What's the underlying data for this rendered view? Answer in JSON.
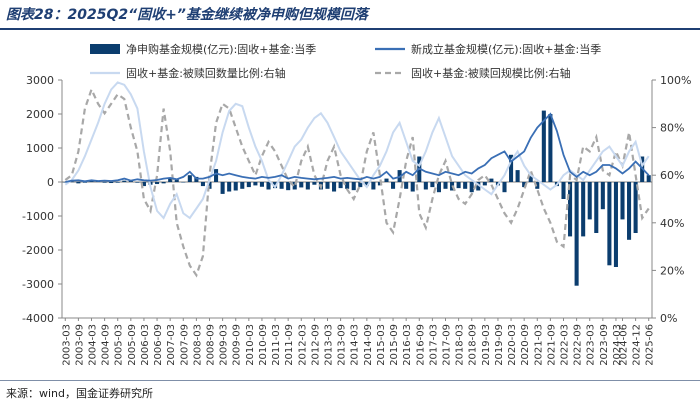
{
  "title": "图表28：2025Q2“固收+”基金继续被净申购但规模回落",
  "source": "来源：wind，国金证券研究所",
  "colors": {
    "bar": "#0b3d6e",
    "line_new": "#3a6fb5",
    "line_ratio": "#c8d9f0",
    "line_scale_ratio": "#a8a8a8",
    "axis": "#888888",
    "text": "#333333",
    "title": "#1f3f73"
  },
  "chart_data": {
    "type": "bar+line",
    "x": [
      "2003-03",
      "2003-06",
      "2003-09",
      "2003-12",
      "2004-03",
      "2004-06",
      "2004-09",
      "2004-12",
      "2005-03",
      "2005-06",
      "2005-09",
      "2005-12",
      "2006-03",
      "2006-06",
      "2006-09",
      "2006-12",
      "2007-03",
      "2007-06",
      "2007-09",
      "2007-12",
      "2008-03",
      "2008-06",
      "2008-09",
      "2008-12",
      "2009-03",
      "2009-06",
      "2009-09",
      "2009-12",
      "2010-03",
      "2010-06",
      "2010-09",
      "2010-12",
      "2011-03",
      "2011-06",
      "2011-09",
      "2011-12",
      "2012-03",
      "2012-06",
      "2012-09",
      "2012-12",
      "2013-03",
      "2013-06",
      "2013-09",
      "2013-12",
      "2014-03",
      "2014-06",
      "2014-09",
      "2014-12",
      "2015-03",
      "2015-06",
      "2015-09",
      "2015-12",
      "2016-03",
      "2016-06",
      "2016-09",
      "2016-12",
      "2017-03",
      "2017-06",
      "2017-09",
      "2017-12",
      "2018-03",
      "2018-06",
      "2018-09",
      "2018-12",
      "2019-03",
      "2019-06",
      "2019-09",
      "2019-12",
      "2020-03",
      "2020-06",
      "2020-09",
      "2020-12",
      "2021-03",
      "2021-06",
      "2021-09",
      "2021-12",
      "2022-03",
      "2022-06",
      "2022-09",
      "2022-12",
      "2023-03",
      "2023-06",
      "2023-09",
      "2023-12",
      "2024-03",
      "2024-06",
      "2024-09",
      "2024-12",
      "2025-03",
      "2025-06"
    ],
    "x_tick_labels": [
      "2003-03",
      "2003-09",
      "2004-03",
      "2004-09",
      "2005-03",
      "2005-09",
      "2006-03",
      "2006-09",
      "2007-03",
      "2007-09",
      "2008-03",
      "2008-09",
      "2009-03",
      "2009-09",
      "2010-03",
      "2010-09",
      "2011-03",
      "2011-09",
      "2012-03",
      "2012-09",
      "2013-03",
      "2013-09",
      "2014-03",
      "2014-09",
      "2015-03",
      "2015-09",
      "2016-03",
      "2016-09",
      "2017-03",
      "2017-09",
      "2018-03",
      "2018-09",
      "2019-03",
      "2019-09",
      "2020-03",
      "2020-09",
      "2021-03",
      "2021-09",
      "2022-03",
      "2022-09",
      "2023-03",
      "2023-09",
      "2024-03",
      "2024-06",
      "2024-12",
      "2025-06"
    ],
    "series": [
      {
        "name": "净申购基金规模(亿元):固收+基金:当季",
        "type": "bar",
        "axis": "left",
        "values": [
          0,
          10,
          -40,
          -20,
          30,
          20,
          -20,
          -30,
          -20,
          40,
          60,
          -20,
          -120,
          -80,
          -60,
          -40,
          120,
          80,
          -10,
          200,
          150,
          -120,
          -200,
          380,
          -350,
          -280,
          -250,
          -200,
          -150,
          -100,
          -140,
          -220,
          -180,
          -200,
          -240,
          -220,
          -160,
          -220,
          -80,
          -220,
          -200,
          -280,
          -180,
          -200,
          -240,
          -150,
          -120,
          -220,
          -100,
          100,
          -200,
          350,
          -200,
          -280,
          750,
          -220,
          -150,
          -300,
          -200,
          -250,
          -180,
          -200,
          -300,
          -250,
          -100,
          100,
          -100,
          -300,
          800,
          350,
          -150,
          200,
          -200,
          2100,
          2000,
          -120,
          -500,
          -1600,
          -3050,
          -1600,
          -1100,
          -1500,
          -800,
          -2450,
          -2500,
          -1100,
          -1700,
          -1500,
          750,
          200
        ]
      },
      {
        "name": "新成立基金规模(亿元):固收+基金:当季",
        "type": "line",
        "axis": "left",
        "values": [
          0,
          40,
          50,
          20,
          50,
          30,
          40,
          30,
          50,
          100,
          40,
          80,
          50,
          40,
          60,
          100,
          120,
          80,
          150,
          300,
          100,
          100,
          150,
          250,
          200,
          250,
          200,
          150,
          120,
          100,
          150,
          120,
          150,
          200,
          100,
          150,
          120,
          100,
          80,
          100,
          120,
          150,
          100,
          120,
          100,
          80,
          150,
          100,
          150,
          300,
          100,
          150,
          300,
          200,
          400,
          300,
          250,
          200,
          300,
          250,
          200,
          300,
          250,
          400,
          500,
          700,
          800,
          900,
          600,
          750,
          900,
          1300,
          1600,
          1800,
          2000,
          1500,
          800,
          300,
          150,
          300,
          200,
          300,
          500,
          500,
          400,
          250,
          400,
          600,
          400,
          200
        ]
      },
      {
        "name": "固收+基金:被赎回数量比例:右轴",
        "type": "line",
        "axis": "right",
        "values": [
          56,
          58,
          62,
          68,
          75,
          82,
          90,
          96,
          99,
          98,
          94,
          88,
          70,
          55,
          45,
          42,
          48,
          52,
          44,
          42,
          46,
          50,
          58,
          66,
          78,
          87,
          90,
          89,
          80,
          72,
          66,
          58,
          55,
          60,
          66,
          72,
          75,
          80,
          84,
          86,
          82,
          76,
          70,
          66,
          62,
          58,
          55,
          60,
          64,
          70,
          78,
          82,
          74,
          66,
          64,
          70,
          78,
          84,
          76,
          68,
          64,
          60,
          58,
          56,
          54,
          52,
          56,
          60,
          66,
          70,
          64,
          60,
          58,
          56,
          54,
          56,
          60,
          62,
          60,
          58,
          62,
          66,
          70,
          72,
          68,
          64,
          70,
          74,
          64,
          68
        ]
      },
      {
        "name": "固收+基金:被赎回规模比例:右轴",
        "type": "line",
        "axis": "right",
        "values": [
          58,
          60,
          70,
          88,
          96,
          90,
          86,
          90,
          94,
          92,
          80,
          70,
          50,
          45,
          60,
          88,
          70,
          40,
          30,
          22,
          18,
          26,
          60,
          82,
          90,
          88,
          80,
          72,
          66,
          60,
          68,
          74,
          70,
          64,
          58,
          55,
          66,
          72,
          60,
          55,
          66,
          72,
          60,
          54,
          50,
          56,
          70,
          78,
          60,
          40,
          36,
          50,
          66,
          76,
          44,
          38,
          50,
          60,
          66,
          56,
          50,
          48,
          52,
          58,
          60,
          56,
          50,
          44,
          40,
          46,
          54,
          62,
          54,
          46,
          40,
          32,
          30,
          60,
          58,
          72,
          70,
          76,
          62,
          60,
          70,
          64,
          78,
          60,
          42,
          46
        ]
      }
    ],
    "y_left": {
      "min": -4000,
      "max": 3000,
      "ticks": [
        "-4000",
        "-3000",
        "-2000",
        "-1000",
        "0",
        "1000",
        "2000",
        "3000"
      ]
    },
    "y_right": {
      "min": 0,
      "max": 100,
      "unit": "%",
      "ticks": [
        "0%",
        "20%",
        "40%",
        "60%",
        "80%",
        "100%"
      ]
    },
    "legend_position": "top"
  }
}
